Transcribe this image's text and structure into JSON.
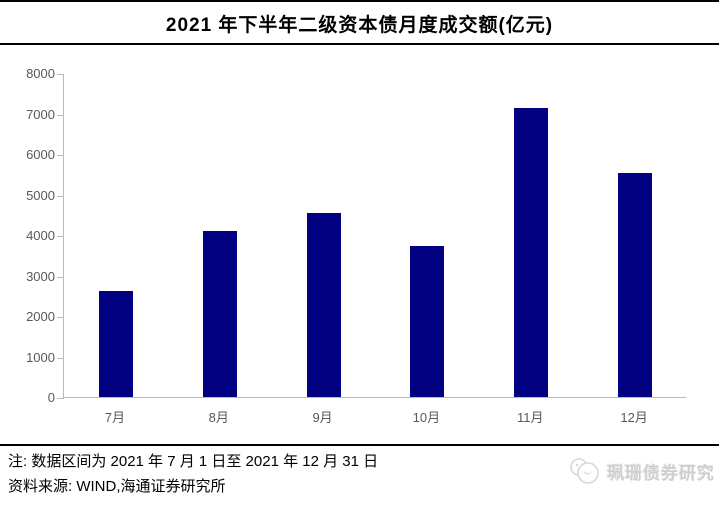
{
  "header": {
    "title": "2021 年下半年二级资本债月度成交额(亿元)"
  },
  "chart_data": {
    "type": "bar",
    "title": "2021 年下半年二级资本债月度成交额(亿元)",
    "categories": [
      "7月",
      "8月",
      "9月",
      "10月",
      "11月",
      "12月"
    ],
    "values": [
      2630,
      4110,
      4540,
      3720,
      7130,
      5520
    ],
    "xlabel": "",
    "ylabel": "",
    "ylim": [
      0,
      8000
    ],
    "yticks": [
      0,
      1000,
      2000,
      3000,
      4000,
      5000,
      6000,
      7000,
      8000
    ],
    "grid": false,
    "legend": false,
    "bar_color": "#000080",
    "axis_color": "#b9b9b9",
    "tick_label_color": "#595959"
  },
  "footer": {
    "note": "注: 数据区间为 2021 年 7 月 1 日至 2021 年 12 月 31 日",
    "source": "资料来源: WIND,海通证券研究所",
    "watermark_label": "珮珊债券研究"
  }
}
